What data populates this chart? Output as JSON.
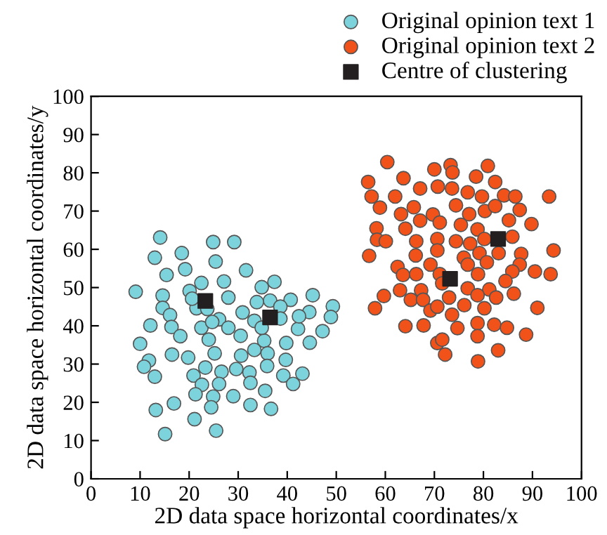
{
  "chart_data": {
    "type": "scatter",
    "xlabel": "2D data space horizontal coordinates/x",
    "ylabel": "2D data space horizontal coordinates/y",
    "xlim": [
      0,
      100
    ],
    "ylim": [
      0,
      100
    ],
    "xticks": [
      0,
      10,
      20,
      30,
      40,
      50,
      60,
      70,
      80,
      90,
      100
    ],
    "yticks": [
      0,
      10,
      20,
      30,
      40,
      50,
      60,
      70,
      80,
      90,
      100
    ],
    "grid": false,
    "legend": "top right",
    "series": [
      {
        "name": "Original opinion text 1",
        "color": "#7dd3db",
        "marker": "circle",
        "x": [
          14.1,
          13.0,
          18.5,
          24.9,
          29.2,
          15.4,
          25.4,
          19.2,
          31.6,
          9.1,
          14.6,
          22.5,
          27.1,
          37.4,
          34.8,
          45.2,
          14.6,
          16.1,
          20.1,
          21.5,
          36.5,
          40.7,
          49.3,
          44.5,
          48.9,
          12.1,
          16.4,
          18.2,
          22.5,
          26.1,
          30.9,
          42.2,
          47.2,
          10.0,
          24.0,
          30.5,
          35.3,
          39.8,
          44.6,
          11.8,
          10.8,
          16.5,
          19.8,
          25.2,
          30.6,
          33.3,
          36.0,
          39.7,
          13.0,
          20.9,
          23.3,
          26.6,
          29.6,
          32.3,
          35.9,
          39.2,
          43.1,
          22.6,
          26.1,
          32.5,
          35.5,
          41.2,
          21.3,
          24.9,
          29.0,
          13.2,
          16.9,
          24.5,
          32.5,
          36.7,
          21.1,
          15.1,
          25.5,
          20.6,
          23.7,
          28.0,
          33.8,
          38.6,
          42.4,
          24.7,
          28.0,
          33.3,
          38.6,
          34.8
        ],
        "values": [
          63.1,
          57.8,
          59.0,
          61.9,
          61.9,
          53.3,
          56.8,
          54.8,
          54.5,
          48.9,
          47.9,
          51.2,
          51.6,
          51.5,
          50.1,
          48.0,
          44.7,
          42.8,
          49.1,
          44.6,
          46.6,
          46.8,
          45.1,
          43.6,
          42.3,
          40.1,
          39.7,
          37.3,
          39.5,
          41.7,
          43.5,
          39.2,
          38.6,
          35.3,
          36.4,
          37.4,
          36.1,
          35.5,
          35.6,
          30.9,
          29.3,
          32.5,
          31.7,
          32.8,
          32.2,
          33.7,
          32.8,
          31.1,
          26.7,
          27.0,
          29.1,
          28.0,
          28.7,
          27.8,
          29.5,
          27.0,
          27.5,
          24.6,
          24.8,
          25.1,
          23.0,
          24.8,
          22.1,
          21.5,
          21.6,
          18.0,
          19.7,
          18.7,
          19.3,
          18.3,
          15.6,
          11.7,
          12.6,
          47.1,
          44.4,
          47.4,
          46.2,
          45.0,
          42.5,
          41.0,
          39.5,
          41.3,
          41.9,
          39.5
        ]
      },
      {
        "name": "Original opinion text 2",
        "color": "#f0521a",
        "marker": "circle",
        "x": [
          60.4,
          56.5,
          63.7,
          70.0,
          73.3,
          73.7,
          80.9,
          78.5,
          82.4,
          57.2,
          62.0,
          67.1,
          70.7,
          73.6,
          76.8,
          79.7,
          84.2,
          86.5,
          93.4,
          58.9,
          63.2,
          65.8,
          69.7,
          74.4,
          77.1,
          80.3,
          82.4,
          87.4,
          67.1,
          71.1,
          75.4,
          78.8,
          85.2,
          89.8,
          58.2,
          64.1,
          58.3,
          60.1,
          66.3,
          70.6,
          74.4,
          77.3,
          80.2,
          85.9,
          56.7,
          66.2,
          70.6,
          76.0,
          79.2,
          83.1,
          87.7,
          94.3,
          62.5,
          69.2,
          76.8,
          80.7,
          87.4,
          63.6,
          66.3,
          71.1,
          78.9,
          85.9,
          90.5,
          93.7,
          84.5,
          63.0,
          67.3,
          71.6,
          76.8,
          81.2,
          86.2,
          59.7,
          65.2,
          67.7,
          73.0,
          78.8,
          82.6,
          57.9,
          69.2,
          70.6,
          76.1,
          80.2,
          91.0,
          64.1,
          67.8,
          73.6,
          74.7,
          78.8,
          82.2,
          84.8,
          88.7,
          78.8,
          70.6,
          71.6,
          72.2,
          83.0,
          78.9
        ],
        "values": [
          82.8,
          77.6,
          78.6,
          80.9,
          82.0,
          80.1,
          81.8,
          79.0,
          77.6,
          73.8,
          73.8,
          75.9,
          76.4,
          75.9,
          74.9,
          73.8,
          74.1,
          73.8,
          73.8,
          70.9,
          69.2,
          71.0,
          69.1,
          71.5,
          69.2,
          70.0,
          71.3,
          70.3,
          67.5,
          67.0,
          66.4,
          65.2,
          67.6,
          66.6,
          65.5,
          65.4,
          62.5,
          62.1,
          62.1,
          62.7,
          62.1,
          61.5,
          62.7,
          63.3,
          58.3,
          58.4,
          59.7,
          57.8,
          59.0,
          59.0,
          58.8,
          59.7,
          55.4,
          56.0,
          56.0,
          56.6,
          56.0,
          53.3,
          53.5,
          53.5,
          53.5,
          54.2,
          54.2,
          53.5,
          51.7,
          49.3,
          49.3,
          51.1,
          49.8,
          49.5,
          48.4,
          47.8,
          46.8,
          46.8,
          47.4,
          48.0,
          47.4,
          44.6,
          44.0,
          45.0,
          45.4,
          44.6,
          44.7,
          39.9,
          40.1,
          42.9,
          39.4,
          40.7,
          40.3,
          39.5,
          37.7,
          37.3,
          35.5,
          36.4,
          32.5,
          33.6,
          30.7
        ]
      },
      {
        "name": "Centre of clustering",
        "color": "#231f20",
        "marker": "square",
        "x": [
          23.3,
          36.5,
          73.2,
          83.0
        ],
        "values": [
          46.5,
          42.2,
          52.3,
          62.7
        ]
      }
    ]
  }
}
